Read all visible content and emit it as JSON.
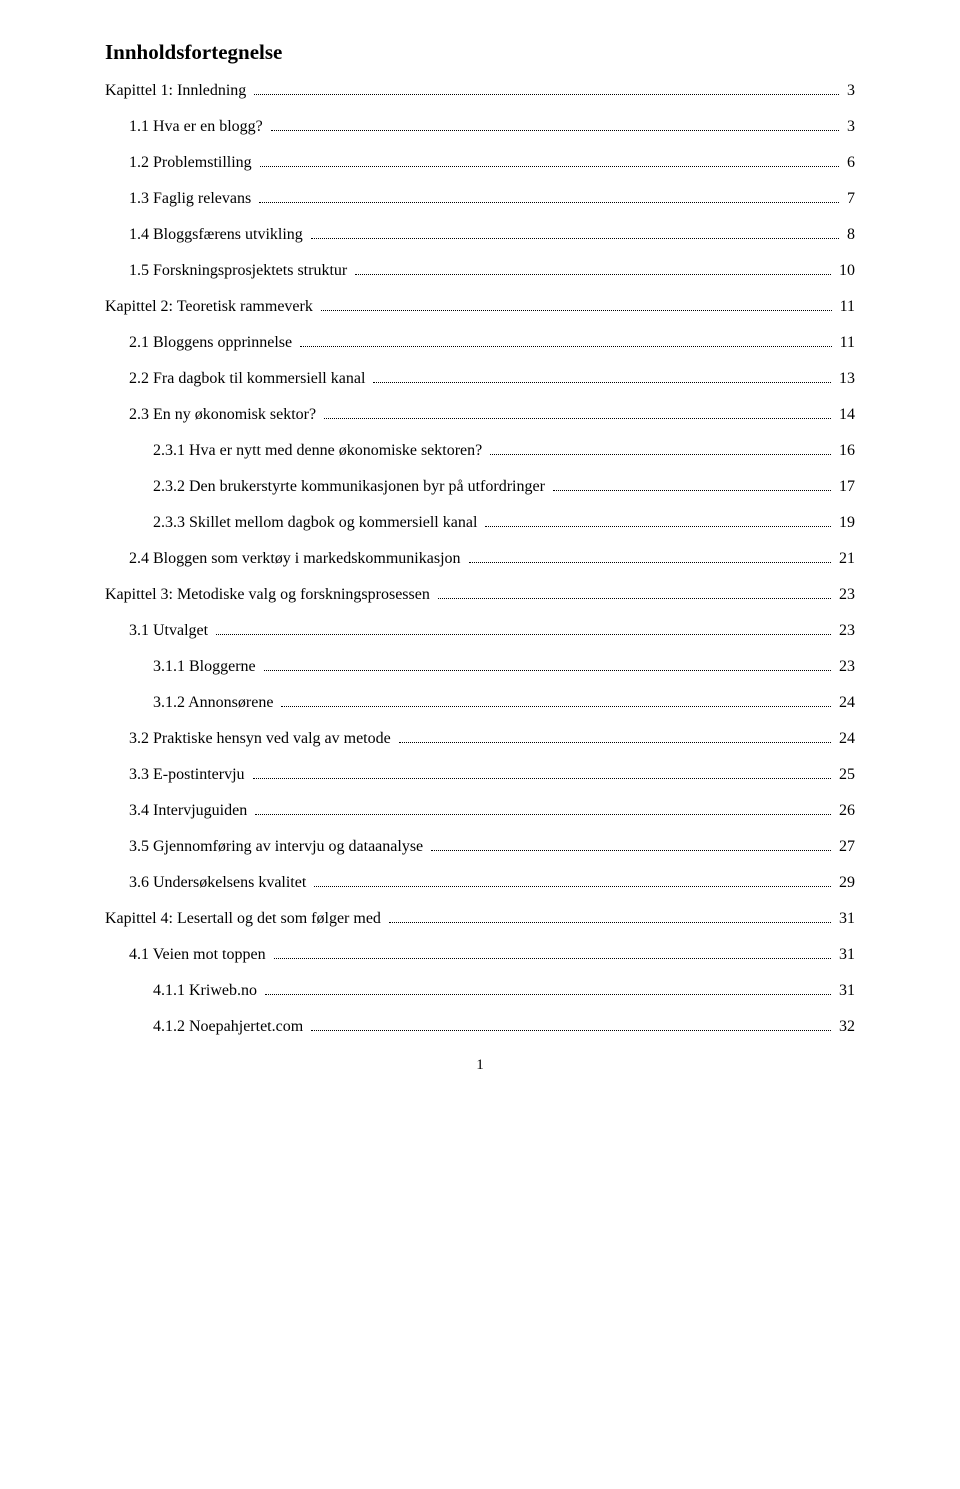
{
  "title": "Innholdsfortegnelse",
  "page_number": "1",
  "entries": [
    {
      "level": 0,
      "label": "Kapittel 1: Innledning",
      "page": "3"
    },
    {
      "level": 1,
      "label": "1.1 Hva er en blogg?",
      "page": "3"
    },
    {
      "level": 1,
      "label": "1.2 Problemstilling",
      "page": "6"
    },
    {
      "level": 1,
      "label": "1.3 Faglig relevans",
      "page": "7"
    },
    {
      "level": 1,
      "label": "1.4 Bloggsfærens utvikling",
      "page": "8"
    },
    {
      "level": 1,
      "label": "1.5 Forskningsprosjektets struktur",
      "page": "10"
    },
    {
      "level": 0,
      "label": "Kapittel 2: Teoretisk rammeverk",
      "page": "11"
    },
    {
      "level": 1,
      "label": "2.1 Bloggens opprinnelse",
      "page": "11"
    },
    {
      "level": 1,
      "label": "2.2 Fra dagbok til kommersiell kanal",
      "page": "13"
    },
    {
      "level": 1,
      "label": "2.3 En ny økonomisk sektor?",
      "page": "14"
    },
    {
      "level": 2,
      "label": "2.3.1 Hva er nytt med denne økonomiske sektoren?",
      "page": "16"
    },
    {
      "level": 2,
      "label": "2.3.2 Den brukerstyrte kommunikasjonen byr på utfordringer",
      "page": "17"
    },
    {
      "level": 2,
      "label": "2.3.3 Skillet mellom dagbok og kommersiell kanal",
      "page": "19"
    },
    {
      "level": 1,
      "label": "2.4 Bloggen som verktøy i markedskommunikasjon",
      "page": "21"
    },
    {
      "level": 0,
      "label": "Kapittel 3: Metodiske valg og forskningsprosessen",
      "page": "23"
    },
    {
      "level": 1,
      "label": "3.1 Utvalget",
      "page": "23"
    },
    {
      "level": 2,
      "label": "3.1.1 Bloggerne",
      "page": "23"
    },
    {
      "level": 2,
      "label": "3.1.2 Annonsørene",
      "page": "24"
    },
    {
      "level": 1,
      "label": "3.2 Praktiske hensyn ved valg av metode",
      "page": "24"
    },
    {
      "level": 1,
      "label": "3.3 E-postintervju",
      "page": "25"
    },
    {
      "level": 1,
      "label": "3.4 Intervjuguiden",
      "page": "26"
    },
    {
      "level": 1,
      "label": "3.5 Gjennomføring av intervju og dataanalyse",
      "page": "27"
    },
    {
      "level": 1,
      "label": "3.6 Undersøkelsens kvalitet",
      "page": "29"
    },
    {
      "level": 0,
      "label": "Kapittel 4: Lesertall og det som følger med",
      "page": "31"
    },
    {
      "level": 1,
      "label": "4.1 Veien mot toppen",
      "page": "31"
    },
    {
      "level": 2,
      "label": "4.1.1 Kriweb.no",
      "page": "31"
    },
    {
      "level": 2,
      "label": "4.1.2 Noepahjertet.com",
      "page": "32"
    }
  ]
}
